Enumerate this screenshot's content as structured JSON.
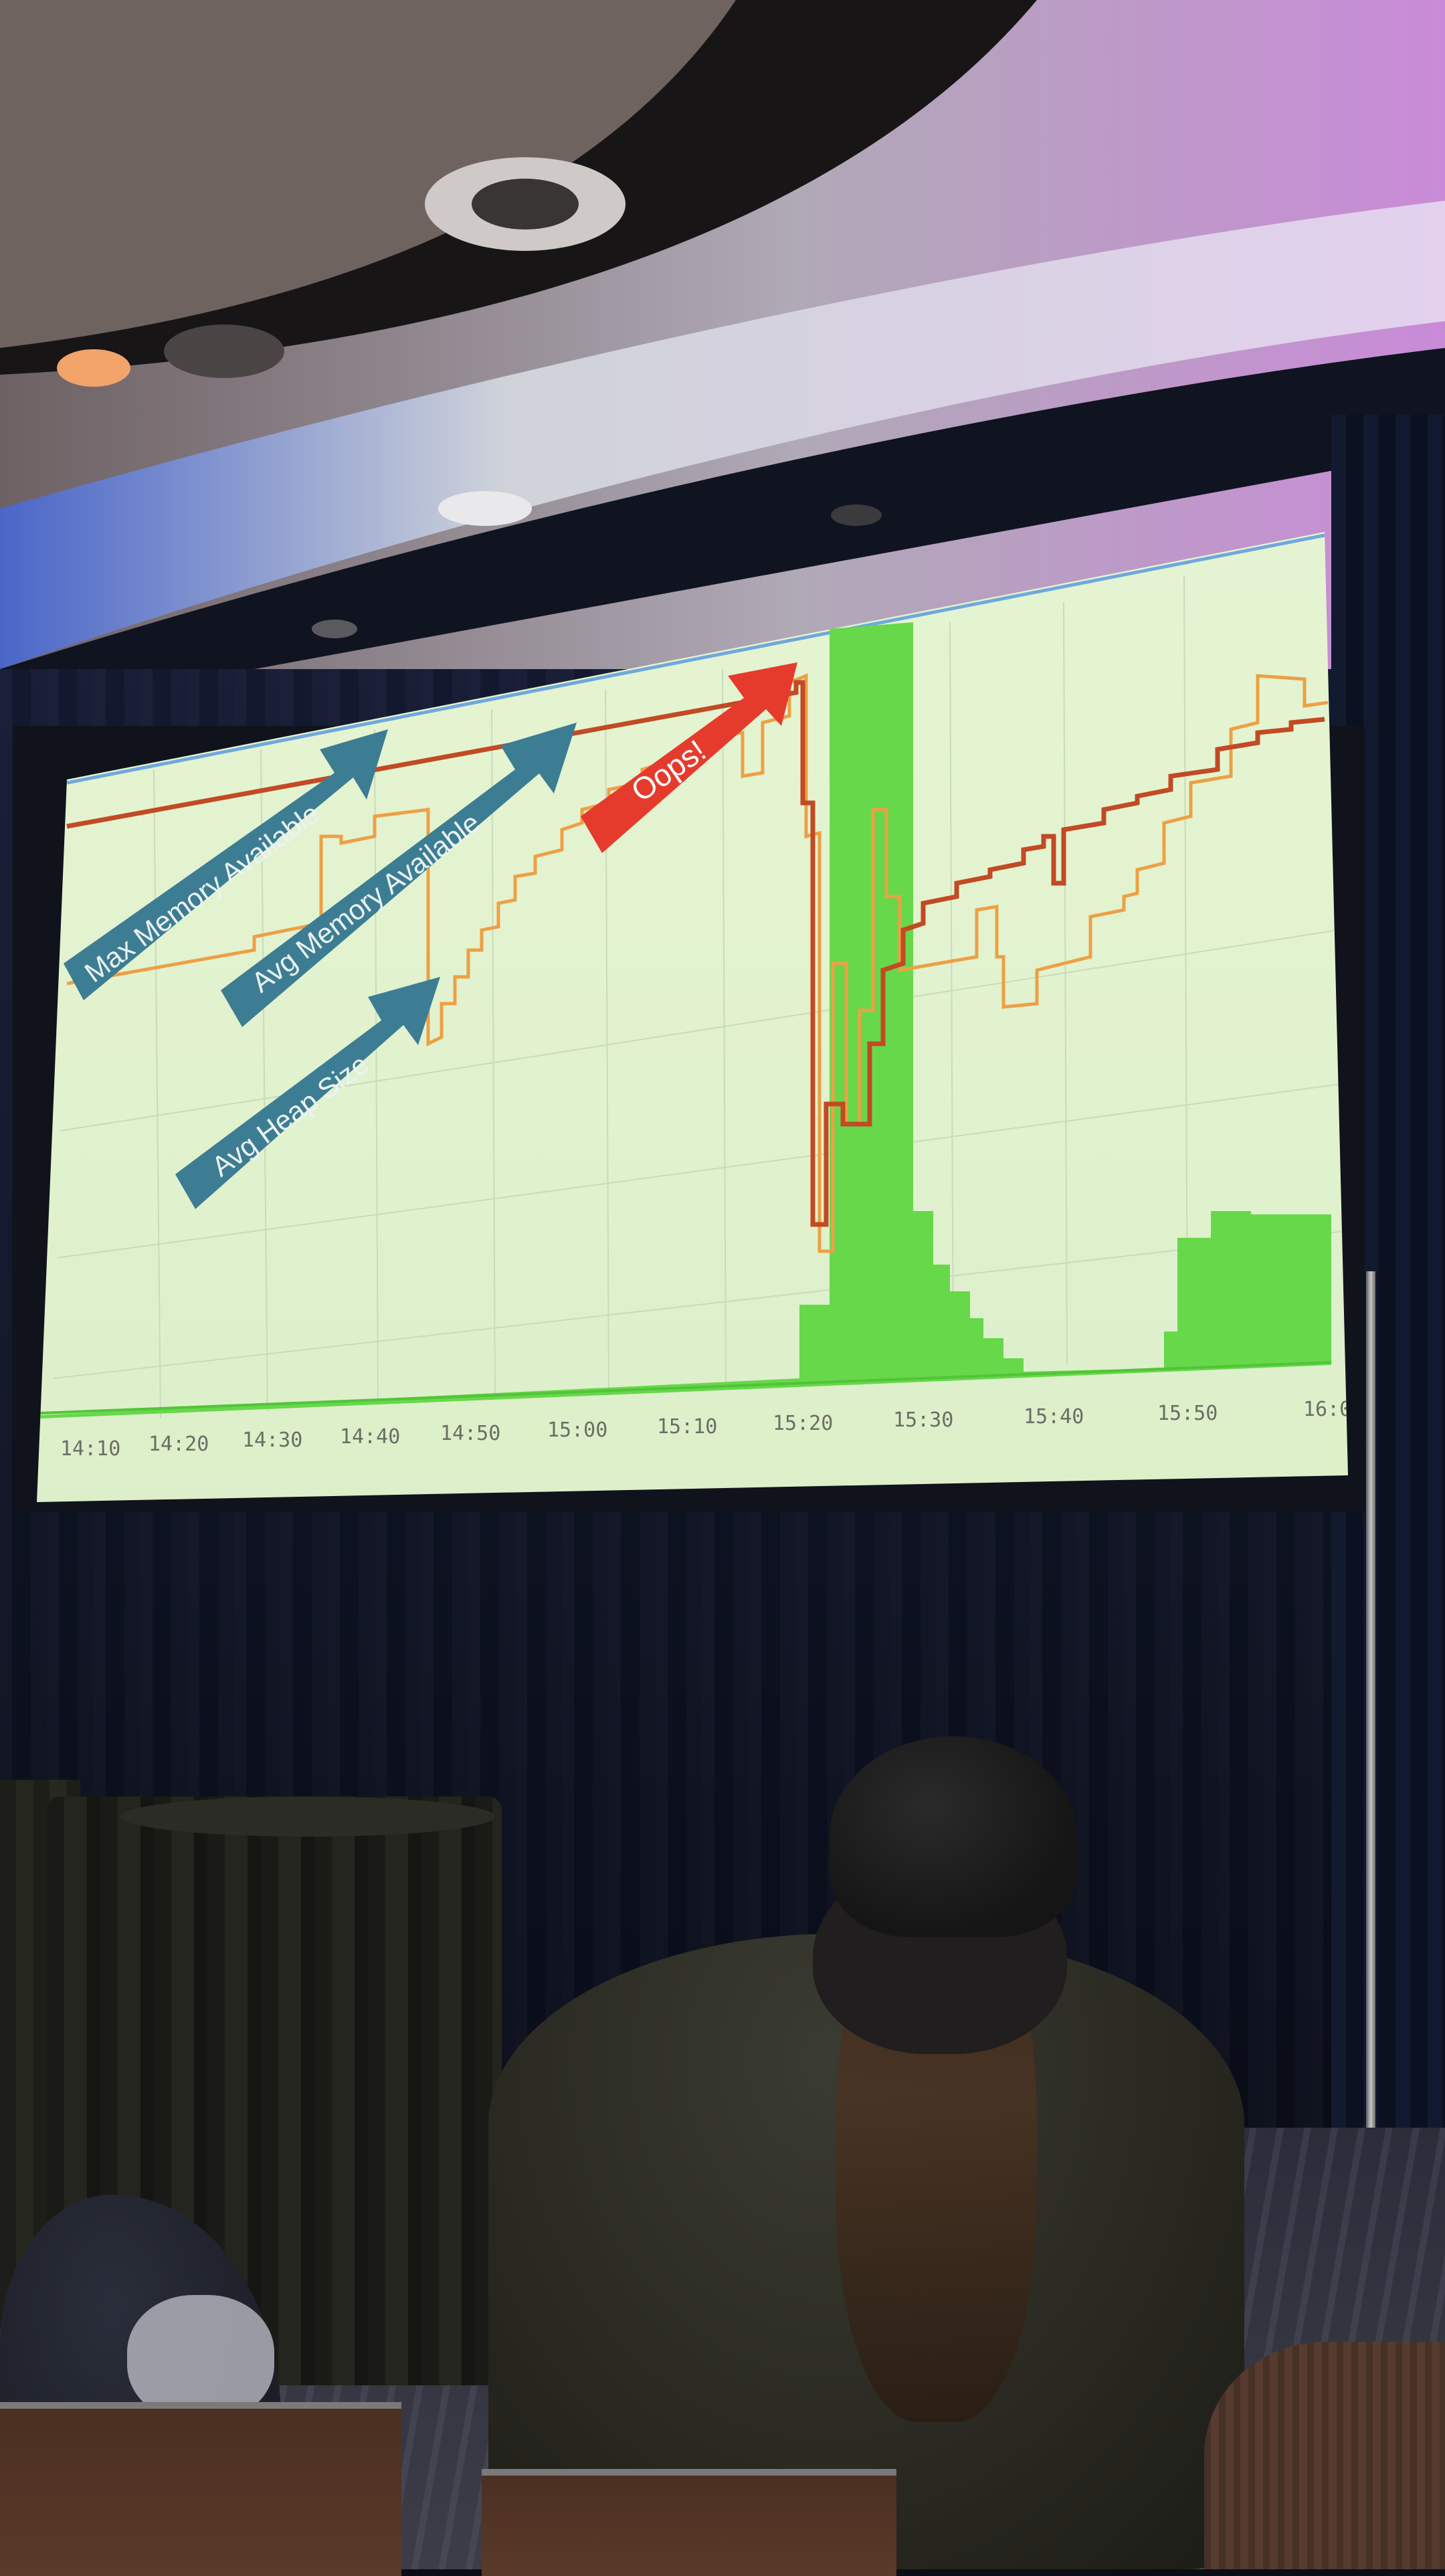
{
  "slide": {
    "annotations": {
      "max_memory": "Max Memory Available",
      "avg_memory": "Avg Memory Available",
      "avg_heap": "Avg Heap Size",
      "oops": "Oops!"
    },
    "x_axis_ticks": [
      "14:10",
      "14:20",
      "14:30",
      "14:40",
      "14:50",
      "15:00",
      "15:10",
      "15:20",
      "15:30",
      "15:40",
      "15:50",
      "16:0"
    ]
  },
  "colors": {
    "screen_bg": "#e4f4d1",
    "max_memory_line": "#c24a24",
    "avg_memory_line": "#eea044",
    "heap_area": "#66d84a",
    "top_line": "#6fa8dc",
    "annotation_arrow": "#3d7d93",
    "oops_arrow": "#e53b2d"
  }
}
